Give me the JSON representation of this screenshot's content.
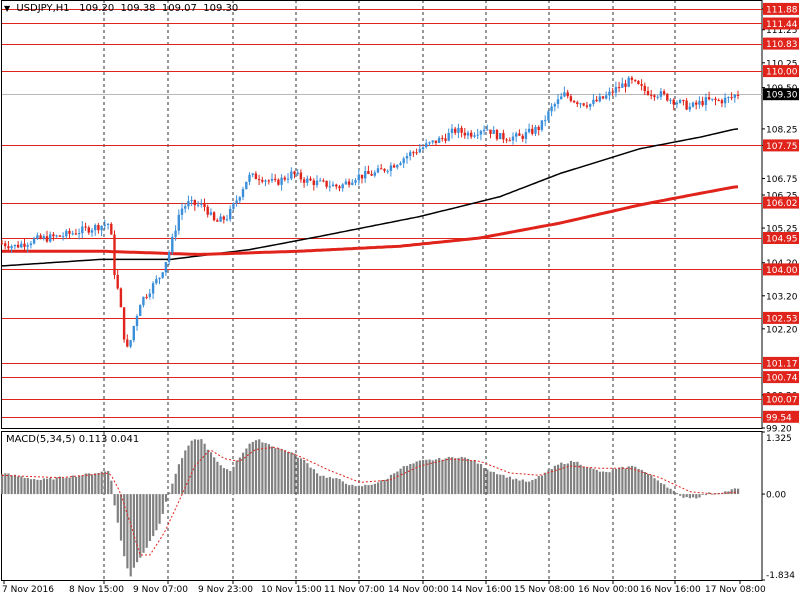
{
  "symbol": "USDJPY,H1",
  "ohlc": {
    "open": "109.20",
    "high": "109.38",
    "low": "109.07",
    "close": "109.30"
  },
  "macd_label": "MACD(5,34,5)",
  "macd_values": {
    "main": "0.113",
    "signal": "0.041"
  },
  "current_price": "109.30",
  "colors": {
    "background": "#ffffff",
    "bull": "#3b8fd9",
    "bear": "#e0241b",
    "level_line": "#e0241b",
    "level_box": "#e0241b",
    "ma_fast": "#000000",
    "ma_slow": "#e0241b",
    "macd_hist": "#808080",
    "macd_signal": "#e0241b",
    "grid": "#000000"
  },
  "chart_data": [
    {
      "type": "candlestick",
      "title": "USDJPY,H1",
      "ylim": [
        99.2,
        112.15
      ],
      "y_ticks": [
        "111.88",
        "111.25",
        "110.25",
        "109.50",
        "108.25",
        "107.75",
        "106.75",
        "106.25",
        "105.25",
        "104.20",
        "103.20",
        "102.20",
        "100.20",
        "99.20"
      ],
      "x_ticks": [
        "7 Nov 2016",
        "8 Nov 15:00",
        "9 Nov 07:00",
        "9 Nov 23:00",
        "10 Nov 15:00",
        "11 Nov 07:00",
        "14 Nov 00:00",
        "14 Nov 16:00",
        "15 Nov 08:00",
        "16 Nov 00:00",
        "16 Nov 16:00",
        "17 Nov 08:00"
      ],
      "levels": [
        {
          "value": 111.88,
          "label": "111.88"
        },
        {
          "value": 111.44,
          "label": "111.44"
        },
        {
          "value": 110.83,
          "label": "110.83"
        },
        {
          "value": 110.0,
          "label": "110.00"
        },
        {
          "value": 107.75,
          "label": "107.75"
        },
        {
          "value": 106.02,
          "label": "106.02"
        },
        {
          "value": 104.95,
          "label": "104.95"
        },
        {
          "value": 104.0,
          "label": "104.00"
        },
        {
          "value": 102.53,
          "label": "102.53"
        },
        {
          "value": 101.17,
          "label": "101.17"
        },
        {
          "value": 100.74,
          "label": "100.74"
        },
        {
          "value": 100.07,
          "label": "100.07"
        },
        {
          "value": 99.54,
          "label": "99.54"
        }
      ],
      "close_anchors": [
        [
          0,
          104.8
        ],
        [
          15,
          104.7
        ],
        [
          35,
          104.9
        ],
        [
          60,
          105.0
        ],
        [
          85,
          105.2
        ],
        [
          110,
          105.4
        ],
        [
          114,
          104.0
        ],
        [
          120,
          103.0
        ],
        [
          124,
          102.0
        ],
        [
          128,
          101.5
        ],
        [
          133,
          102.2
        ],
        [
          140,
          103.0
        ],
        [
          150,
          103.4
        ],
        [
          160,
          103.8
        ],
        [
          170,
          104.6
        ],
        [
          175,
          105.2
        ],
        [
          180,
          105.8
        ],
        [
          188,
          106.0
        ],
        [
          205,
          105.9
        ],
        [
          215,
          105.4
        ],
        [
          228,
          105.6
        ],
        [
          240,
          106.3
        ],
        [
          248,
          106.8
        ],
        [
          260,
          106.8
        ],
        [
          275,
          106.6
        ],
        [
          292,
          106.9
        ],
        [
          305,
          106.7
        ],
        [
          320,
          106.6
        ],
        [
          340,
          106.5
        ],
        [
          355,
          106.8
        ],
        [
          375,
          106.9
        ],
        [
          395,
          107.2
        ],
        [
          410,
          107.5
        ],
        [
          430,
          107.8
        ],
        [
          445,
          108.0
        ],
        [
          455,
          108.2
        ],
        [
          470,
          108.1
        ],
        [
          485,
          108.3
        ],
        [
          500,
          108.0
        ],
        [
          520,
          108.0
        ],
        [
          540,
          108.3
        ],
        [
          552,
          108.9
        ],
        [
          565,
          109.3
        ],
        [
          575,
          109.1
        ],
        [
          590,
          109.0
        ],
        [
          605,
          109.2
        ],
        [
          618,
          109.5
        ],
        [
          630,
          109.7
        ],
        [
          645,
          109.4
        ],
        [
          660,
          109.3
        ],
        [
          675,
          109.1
        ],
        [
          690,
          108.9
        ],
        [
          705,
          109.1
        ],
        [
          720,
          109.1
        ],
        [
          733,
          109.2
        ],
        [
          736,
          109.3
        ]
      ],
      "ma_fast": [
        [
          0,
          104.1
        ],
        [
          100,
          104.3
        ],
        [
          170,
          104.3
        ],
        [
          250,
          104.6
        ],
        [
          320,
          105.0
        ],
        [
          420,
          105.6
        ],
        [
          500,
          106.2
        ],
        [
          560,
          106.9
        ],
        [
          640,
          107.65
        ],
        [
          700,
          108.0
        ],
        [
          736,
          108.25
        ]
      ],
      "ma_slow": [
        [
          0,
          104.55
        ],
        [
          100,
          104.55
        ],
        [
          200,
          104.45
        ],
        [
          300,
          104.55
        ],
        [
          400,
          104.7
        ],
        [
          480,
          104.95
        ],
        [
          560,
          105.4
        ],
        [
          640,
          105.95
        ],
        [
          700,
          106.3
        ],
        [
          736,
          106.5
        ]
      ]
    },
    {
      "type": "histogram",
      "title": "MACD(5,34,5) 0.113 0.041",
      "ylim": [
        -1.834,
        1.325
      ],
      "y_ticks": [
        "1.325",
        "0.00",
        "-1.834"
      ],
      "hist_anchors": [
        [
          0,
          0.45
        ],
        [
          40,
          0.3
        ],
        [
          80,
          0.4
        ],
        [
          110,
          0.5
        ],
        [
          115,
          -0.3
        ],
        [
          120,
          -0.9
        ],
        [
          125,
          -1.4
        ],
        [
          130,
          -1.8
        ],
        [
          135,
          -1.5
        ],
        [
          145,
          -1.2
        ],
        [
          160,
          -0.6
        ],
        [
          170,
          0.1
        ],
        [
          180,
          0.7
        ],
        [
          190,
          1.1
        ],
        [
          200,
          1.2
        ],
        [
          210,
          0.9
        ],
        [
          220,
          0.6
        ],
        [
          230,
          0.5
        ],
        [
          240,
          0.8
        ],
        [
          250,
          1.1
        ],
        [
          260,
          1.15
        ],
        [
          275,
          1.0
        ],
        [
          290,
          0.9
        ],
        [
          305,
          0.7
        ],
        [
          320,
          0.4
        ],
        [
          340,
          0.3
        ],
        [
          355,
          0.15
        ],
        [
          370,
          0.2
        ],
        [
          385,
          0.3
        ],
        [
          400,
          0.55
        ],
        [
          420,
          0.7
        ],
        [
          440,
          0.75
        ],
        [
          460,
          0.8
        ],
        [
          475,
          0.7
        ],
        [
          490,
          0.5
        ],
        [
          510,
          0.35
        ],
        [
          530,
          0.25
        ],
        [
          545,
          0.45
        ],
        [
          560,
          0.65
        ],
        [
          575,
          0.7
        ],
        [
          590,
          0.55
        ],
        [
          605,
          0.45
        ],
        [
          620,
          0.55
        ],
        [
          635,
          0.6
        ],
        [
          650,
          0.4
        ],
        [
          665,
          0.2
        ],
        [
          680,
          -0.05
        ],
        [
          695,
          -0.08
        ],
        [
          710,
          0.02
        ],
        [
          725,
          0.05
        ],
        [
          736,
          0.113
        ]
      ],
      "signal_anchors": [
        [
          0,
          0.4
        ],
        [
          60,
          0.35
        ],
        [
          110,
          0.45
        ],
        [
          120,
          0.05
        ],
        [
          130,
          -0.6
        ],
        [
          140,
          -1.3
        ],
        [
          150,
          -1.3
        ],
        [
          165,
          -0.8
        ],
        [
          180,
          -0.1
        ],
        [
          195,
          0.6
        ],
        [
          210,
          0.95
        ],
        [
          225,
          0.75
        ],
        [
          240,
          0.7
        ],
        [
          255,
          0.95
        ],
        [
          275,
          1.0
        ],
        [
          300,
          0.8
        ],
        [
          330,
          0.5
        ],
        [
          360,
          0.25
        ],
        [
          390,
          0.3
        ],
        [
          420,
          0.6
        ],
        [
          450,
          0.75
        ],
        [
          480,
          0.7
        ],
        [
          510,
          0.45
        ],
        [
          540,
          0.4
        ],
        [
          570,
          0.6
        ],
        [
          600,
          0.55
        ],
        [
          630,
          0.55
        ],
        [
          660,
          0.35
        ],
        [
          690,
          0.05
        ],
        [
          715,
          0.0
        ],
        [
          736,
          0.041
        ]
      ]
    }
  ]
}
